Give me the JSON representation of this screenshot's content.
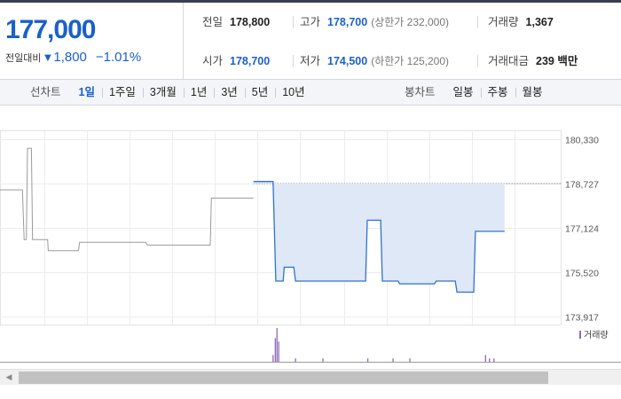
{
  "quote": {
    "price": "177,000",
    "change_label": "전일대비",
    "change_icon": "triangle-down-icon",
    "change_amount": "1,800",
    "change_rate": "−1.01%",
    "prev_close_label": "전일",
    "prev_close": "178,800",
    "high_label": "고가",
    "high": "178,700",
    "upper_limit": "(상한가 232,000)",
    "volume_label": "거래량",
    "volume": "1,367",
    "open_label": "시가",
    "open": "178,700",
    "low_label": "저가",
    "low": "174,500",
    "lower_limit": "(하한가 125,200)",
    "amount_label": "거래대금",
    "amount": "239 백만"
  },
  "tabs": {
    "line_label": "선차트",
    "line_tabs": [
      "1일",
      "1주일",
      "3개월",
      "1년",
      "3년",
      "5년",
      "10년"
    ],
    "candle_label": "봉차트",
    "candle_tabs": [
      "일봉",
      "주봉",
      "월봉"
    ],
    "selected": "1일"
  },
  "colors": {
    "accent_blue": "#1b60c9",
    "today_line": "#2f72cf",
    "prev_line": "#9a9a9a",
    "volume_bar": "#8e6bb8"
  },
  "chart_data": {
    "type": "line",
    "y_ticks": [
      "180,330",
      "178,727",
      "177,124",
      "175,520",
      "173,917"
    ],
    "y_tick_values": [
      180330,
      178727,
      177124,
      175520,
      173917
    ],
    "ylim": [
      173917,
      180330
    ],
    "x_range": [
      0,
      100
    ],
    "grid": true,
    "reference_level": 178727,
    "series": [
      {
        "points": [
          [
            0,
            178500
          ],
          [
            4,
            178500
          ],
          [
            4.3,
            176700
          ],
          [
            4.7,
            176700
          ],
          [
            4.9,
            180000
          ],
          [
            5.6,
            180000
          ],
          [
            5.8,
            176700
          ],
          [
            8.5,
            176700
          ],
          [
            8.6,
            176300
          ],
          [
            14,
            176300
          ],
          [
            14.2,
            176600
          ],
          [
            26,
            176600
          ],
          [
            26.3,
            176500
          ],
          [
            37.5,
            176500
          ],
          [
            37.7,
            178200
          ],
          [
            45.2,
            178200
          ]
        ],
        "values_note": ""
      },
      {
        "points": [
          [
            45.2,
            178800
          ],
          [
            48.7,
            178800
          ],
          [
            49.2,
            175200
          ],
          [
            50.5,
            175200
          ],
          [
            50.7,
            175700
          ],
          [
            52.4,
            175700
          ],
          [
            52.7,
            175200
          ],
          [
            65.2,
            175200
          ],
          [
            65.5,
            177400
          ],
          [
            67.9,
            177400
          ],
          [
            68.2,
            175200
          ],
          [
            71,
            175200
          ],
          [
            71.3,
            175100
          ],
          [
            77.5,
            175100
          ],
          [
            77.8,
            175200
          ],
          [
            81.2,
            175200
          ],
          [
            81.5,
            174800
          ],
          [
            84.5,
            174800
          ],
          [
            84.8,
            177000
          ],
          [
            90,
            177000
          ]
        ]
      }
    ],
    "volume_legend": "거래량",
    "volume": [
      [
        48.6,
        2
      ],
      [
        49.0,
        7
      ],
      [
        49.3,
        10
      ],
      [
        49.6,
        6
      ],
      [
        52.6,
        1
      ],
      [
        57.5,
        1
      ],
      [
        65.5,
        1
      ],
      [
        70,
        1
      ],
      [
        73,
        1
      ],
      [
        86.5,
        2
      ],
      [
        87.2,
        1
      ],
      [
        88,
        1
      ]
    ]
  }
}
